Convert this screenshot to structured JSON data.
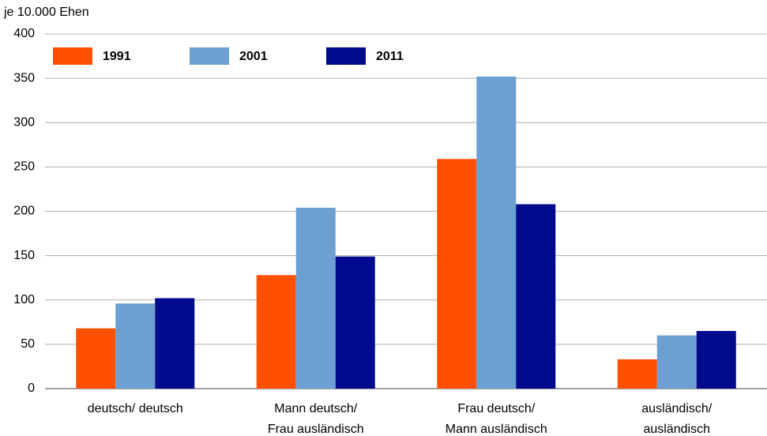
{
  "chart_data": {
    "type": "bar",
    "y_label": "je 10.000 Ehen",
    "categories": [
      "deutsch/ deutsch",
      "Mann deutsch/\nFrau ausländisch",
      "Frau deutsch/\nMann ausländisch",
      "ausländisch/\nausländisch"
    ],
    "series": [
      {
        "name": "1991",
        "color": "#ff5000",
        "values": [
          68,
          128,
          259,
          33
        ]
      },
      {
        "name": "2001",
        "color": "#6ca0d2",
        "values": [
          96,
          204,
          352,
          60
        ]
      },
      {
        "name": "2011",
        "color": "#000a8c",
        "values": [
          102,
          149,
          208,
          65
        ]
      }
    ],
    "ylim": [
      0,
      400
    ],
    "yticks": [
      0,
      50,
      100,
      150,
      200,
      250,
      300,
      350,
      400
    ],
    "grid": true,
    "legend": "top-left"
  }
}
